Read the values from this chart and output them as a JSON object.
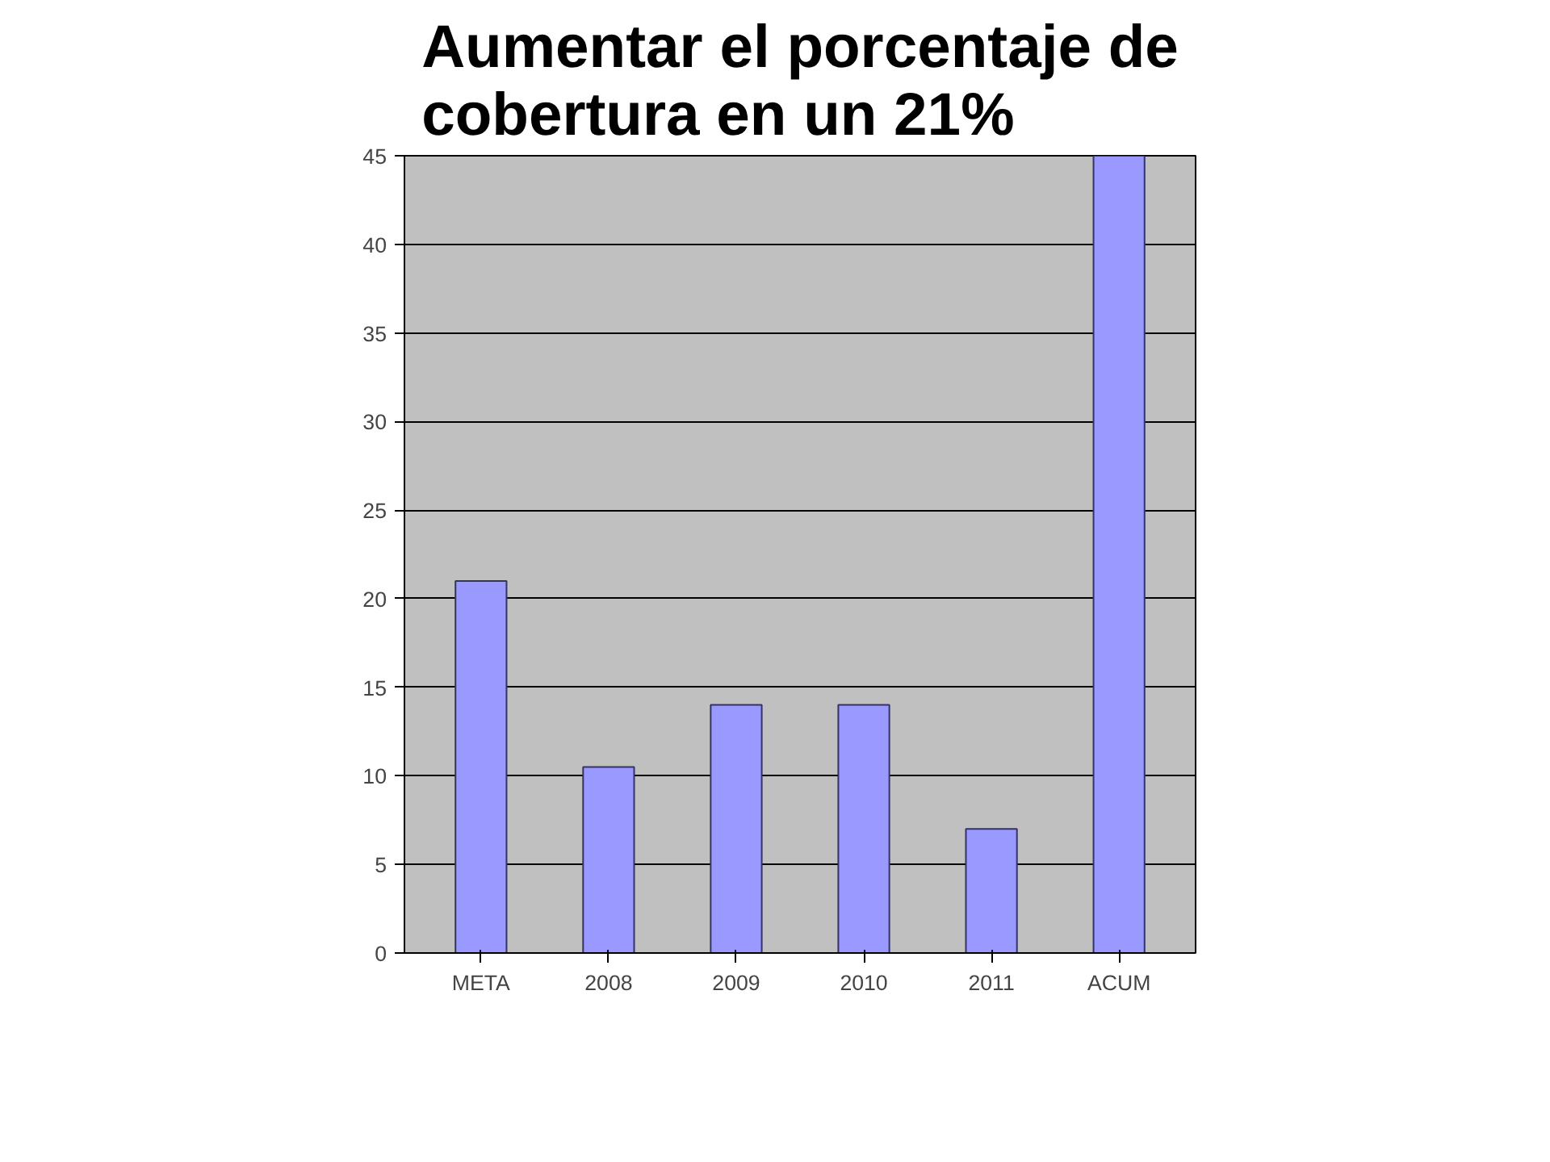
{
  "chart_data": {
    "type": "bar",
    "title": "Aumentar el porcentaje de\ncobertura en un 21%",
    "categories": [
      "META",
      "2008",
      "2009",
      "2010",
      "2011",
      "ACUM"
    ],
    "values": [
      21,
      10.5,
      14,
      14,
      7,
      45
    ],
    "color": "#9999ff",
    "ylim": [
      0,
      45
    ],
    "yticks": [
      0,
      5,
      10,
      15,
      20,
      25,
      30,
      35,
      40,
      45
    ],
    "grid": "y"
  }
}
